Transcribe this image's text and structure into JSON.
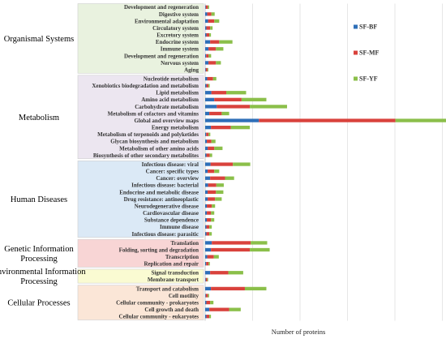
{
  "chart_data": {
    "type": "bar",
    "stacked": true,
    "orientation": "horizontal",
    "xlabel": "Number of proteins",
    "ylabel": "",
    "title": "",
    "grid": true,
    "legend_position": "right",
    "series_colors": [
      "#2e6fb8",
      "#d9423c",
      "#8bbf4a"
    ],
    "groups": [
      {
        "name": "Organismal Systems",
        "color": "#e9f2df",
        "categories": [
          "Development and regeneration",
          "Digestive system",
          "Environmental adaptation",
          "Circulatory system",
          "Excretory system",
          "Endocrine system",
          "Immune system",
          "Development and regeneration",
          "Nervous system",
          "Aging"
        ]
      },
      {
        "name": "Metabolism",
        "color": "#ece6f0",
        "categories": [
          "Nucleotide metabolism",
          "Xenobiotics biodegradation and metabolism",
          "Lipid metabolism",
          "Amino acid metabolism",
          "Carbohydrate metabolism",
          "Metabolism of cofactors and vitamins",
          "Global and overview maps",
          "Energy metabolism",
          "Metabolism of terpenoids and polyketides",
          "Glycan biosynthesis and metabolism",
          "Metabolism of other amino acids",
          "Biosynthesis of other secondary metabolites"
        ]
      },
      {
        "name": "Human Diseases",
        "color": "#dbe9f6",
        "categories": [
          "Infectious disease: viral",
          "Cancer: specific types",
          "Cancer: overview",
          "Infectious disease: bacterial",
          "Endocrine and metabolic disease",
          "Drug resistance: antineoplastic",
          "Neurodegenerative disease",
          "Cardiovascular disease",
          "Substance dependence",
          "Immune disease",
          "Infectious disease: parasitic"
        ]
      },
      {
        "name": "Genetic Information Processing",
        "color": "#f8d5d5",
        "categories": [
          "Translation",
          "Folding, sorting and degradation",
          "Transcription",
          "Replication and repair"
        ]
      },
      {
        "name": "Environmental Information Processing",
        "color": "#fafbd2",
        "categories": [
          "Signal transduction",
          "Membrane transport"
        ]
      },
      {
        "name": "Cellular Processes",
        "color": "#fbe6d7",
        "categories": [
          "Transport and catabolism",
          "Cell motility",
          "Cellular community - prokaryotes",
          "Cell growth and death",
          "Cellular community - eukaryotes"
        ]
      }
    ],
    "series": [
      {
        "name": "SF-BF",
        "values": [
          0.8,
          2.5,
          3.5,
          1.5,
          1.5,
          6,
          4,
          1.2,
          4,
          0.8,
          2.5,
          1.5,
          7.5,
          11,
          14,
          5,
          65,
          7,
          1.2,
          2,
          3,
          1.5,
          6.5,
          3,
          6,
          3.5,
          3,
          3,
          2,
          2,
          2,
          1.5,
          1.5,
          8,
          7,
          2.5,
          1.2,
          6,
          0.8,
          7,
          0.8,
          1.5,
          5,
          1.5
        ]
      },
      {
        "name": "SF-MF",
        "values": [
          2.5,
          5,
          7.5,
          4.5,
          3.5,
          11,
          9,
          3,
          9,
          2,
          7,
          2.5,
          18,
          33,
          40,
          15,
          165,
          24,
          3,
          5.5,
          8,
          4,
          27,
          8,
          18,
          10,
          10,
          9,
          6,
          5,
          5,
          3.5,
          3.5,
          47,
          47,
          8,
          3,
          22,
          1.8,
          41,
          2.5,
          4.5,
          24,
          3.5
        ]
      },
      {
        "name": "SF-YF",
        "values": [
          1.5,
          4,
          6,
          3,
          2,
          16,
          9,
          3,
          6,
          1,
          4,
          1.5,
          24,
          30,
          45,
          9,
          120,
          23,
          2,
          5,
          10,
          3,
          21,
          6,
          11,
          9,
          9,
          8,
          4,
          4,
          4,
          3,
          3,
          20,
          24,
          6,
          1.5,
          18,
          1,
          26,
          1.5,
          4,
          14,
          2
        ]
      }
    ]
  }
}
